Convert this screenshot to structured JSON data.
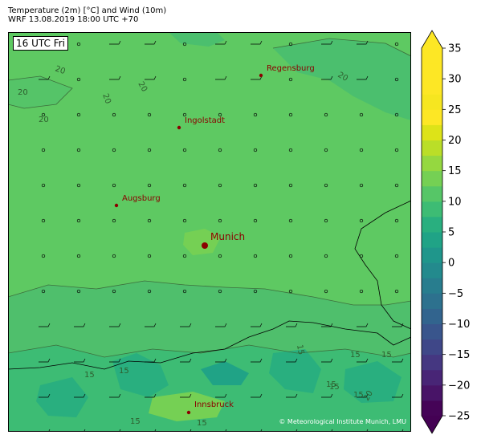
{
  "header": {
    "line1": "Temperature (2m) [°C] and Wind (10m)",
    "line2": "WRF 13.08.2019 18:00 UTC +70"
  },
  "time_label": "16 UTC Fri",
  "credit": "© Meteorological Institute Munich, LMU",
  "colors": {
    "base": "#5ec962",
    "contour": "#3c6e3c",
    "city": "#8b0000",
    "border": "#000000"
  },
  "cities": [
    {
      "name": "Regensburg",
      "major": false
    },
    {
      "name": "Ingolstadt",
      "major": false
    },
    {
      "name": "Augsburg",
      "major": false
    },
    {
      "name": "Munich",
      "major": true
    },
    {
      "name": "Innsbruck",
      "major": false
    }
  ],
  "contour_labels": [
    "20",
    "20",
    "20",
    "20",
    "20",
    "20",
    "15",
    "15",
    "15",
    "15",
    "15",
    "15",
    "15",
    "15",
    "15",
    "15",
    "20"
  ],
  "colorbar": {
    "ticks": [
      "35",
      "30",
      "25",
      "20",
      "15",
      "10",
      "5",
      "0",
      "−5",
      "−10",
      "−15",
      "−20",
      "−25"
    ],
    "min": -25,
    "max": 35,
    "step": 2.5,
    "colors": [
      "#450457",
      "#481467",
      "#482576",
      "#453781",
      "#3f4788",
      "#39558c",
      "#32648e",
      "#2d718e",
      "#287d8e",
      "#238a8d",
      "#1f968b",
      "#20a386",
      "#29af7f",
      "#3dbc74",
      "#56c667",
      "#75d054",
      "#95d840",
      "#bade28",
      "#dde318",
      "#fde725",
      "#f6e620",
      "#fde725",
      "#fde725",
      "#fde725"
    ]
  }
}
